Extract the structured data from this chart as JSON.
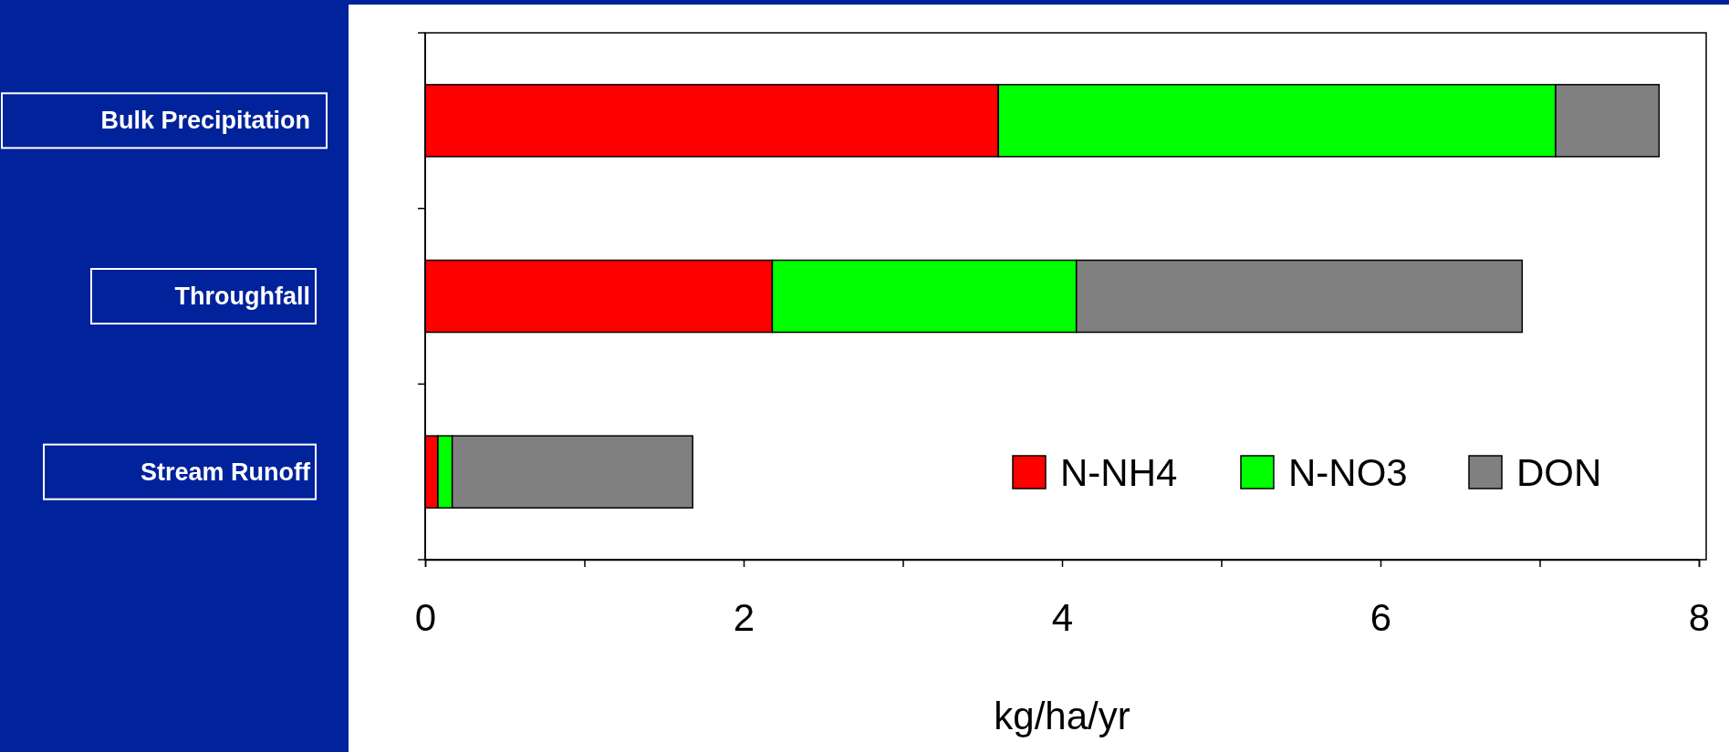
{
  "chart_data": {
    "type": "bar",
    "orientation": "horizontal",
    "stacked": true,
    "xlabel": "kg/ha/yr",
    "categories": [
      "Bulk Precipitation",
      "Throughfall",
      "Stream Runoff"
    ],
    "series": [
      {
        "name": "N-NH4",
        "color": "#ff0000",
        "values": [
          3.6,
          2.18,
          0.08
        ]
      },
      {
        "name": "N-NO3",
        "color": "#00ff00",
        "values": [
          3.5,
          1.91,
          0.09
        ]
      },
      {
        "name": "DON",
        "color": "#808080",
        "values": [
          0.65,
          2.8,
          1.51
        ]
      }
    ],
    "xlim": [
      0,
      8
    ],
    "xticks": [
      0,
      {
        "value": 1,
        "label": null
      },
      2,
      {
        "value": 3,
        "label": null
      },
      4,
      {
        "value": 5,
        "label": null
      },
      6,
      {
        "value": 7,
        "label": null
      },
      8
    ],
    "grid": false,
    "legend": "bottom right"
  }
}
